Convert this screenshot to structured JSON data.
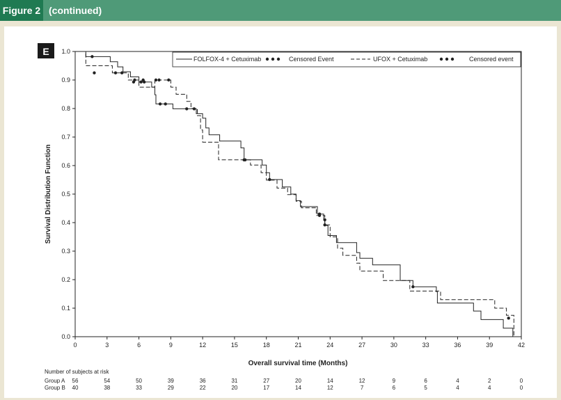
{
  "header": {
    "figure_label": "Figure 2",
    "subtitle": "(continued)"
  },
  "colors": {
    "header_bar": "#4f9a78",
    "label_box": "#1f7a52",
    "page_bg": "#ebe6d3"
  },
  "chart_data": {
    "type": "line",
    "panel_label": "E",
    "title": "",
    "xlabel": "Overall survival time (Months)",
    "ylabel": "Survival Distribution Function",
    "xlim": [
      0,
      42
    ],
    "ylim": [
      0,
      1.0
    ],
    "xticks": [
      0,
      3,
      6,
      9,
      12,
      15,
      18,
      21,
      24,
      27,
      30,
      33,
      36,
      39,
      42
    ],
    "yticks": [
      "0.0",
      "0.1",
      "0.2",
      "0.3",
      "0.4",
      "0.5",
      "0.6",
      "0.7",
      "0.8",
      "0.9",
      "1.0"
    ],
    "grid": false,
    "legend_position": "top-right",
    "legend": [
      {
        "label": "FOLFOX-4 + Cetuximab",
        "style": "solid",
        "censor_label": "Censored Event"
      },
      {
        "label": "UFOX + Cetuximab",
        "style": "dashed",
        "censor_label": "Censored event"
      }
    ],
    "series": [
      {
        "name": "FOLFOX-4 + Cetuximab",
        "style": "solid",
        "steps": [
          [
            0,
            1.0
          ],
          [
            1,
            0.982
          ],
          [
            3.3,
            0.964
          ],
          [
            4.0,
            0.946
          ],
          [
            4.5,
            0.929
          ],
          [
            5.2,
            0.911
          ],
          [
            6.0,
            0.893
          ],
          [
            7.2,
            0.875
          ],
          [
            7.5,
            0.848
          ],
          [
            7.6,
            0.816
          ],
          [
            9.2,
            0.799
          ],
          [
            11.4,
            0.782
          ],
          [
            12.0,
            0.766
          ],
          [
            12.3,
            0.732
          ],
          [
            12.6,
            0.708
          ],
          [
            13.6,
            0.686
          ],
          [
            15.6,
            0.662
          ],
          [
            15.9,
            0.62
          ],
          [
            17.6,
            0.602
          ],
          [
            18.0,
            0.575
          ],
          [
            18.3,
            0.551
          ],
          [
            19.5,
            0.525
          ],
          [
            20.3,
            0.5
          ],
          [
            20.8,
            0.477
          ],
          [
            21.2,
            0.456
          ],
          [
            22.8,
            0.43
          ],
          [
            23.4,
            0.41
          ],
          [
            23.5,
            0.39
          ],
          [
            23.8,
            0.355
          ],
          [
            24.6,
            0.33
          ],
          [
            26.5,
            0.295
          ],
          [
            26.8,
            0.275
          ],
          [
            28.0,
            0.252
          ],
          [
            30.6,
            0.197
          ],
          [
            31.8,
            0.175
          ],
          [
            34.0,
            0.158
          ],
          [
            34.1,
            0.118
          ],
          [
            37.5,
            0.09
          ],
          [
            38.2,
            0.06
          ],
          [
            40.3,
            0.03
          ],
          [
            41.2,
            0.0
          ]
        ],
        "end": 41.2,
        "censored": [
          [
            1.6,
            0.982
          ],
          [
            5.5,
            0.893
          ],
          [
            6.2,
            0.893
          ],
          [
            6.5,
            0.893
          ],
          [
            8.0,
            0.816
          ],
          [
            8.5,
            0.816
          ],
          [
            10.5,
            0.799
          ],
          [
            11.2,
            0.799
          ],
          [
            15.9,
            0.62
          ],
          [
            18.3,
            0.551
          ],
          [
            23.0,
            0.43
          ],
          [
            23.5,
            0.41
          ],
          [
            31.8,
            0.175
          ]
        ]
      },
      {
        "name": "UFOX + Cetuximab",
        "style": "dashed",
        "steps": [
          [
            0,
            1.0
          ],
          [
            1.0,
            0.95
          ],
          [
            3.5,
            0.925
          ],
          [
            5.0,
            0.9
          ],
          [
            6.0,
            0.875
          ],
          [
            7.5,
            0.9
          ],
          [
            9.0,
            0.875
          ],
          [
            9.5,
            0.85
          ],
          [
            10.5,
            0.825
          ],
          [
            10.9,
            0.8
          ],
          [
            11.5,
            0.775
          ],
          [
            11.8,
            0.725
          ],
          [
            12.0,
            0.682
          ],
          [
            13.5,
            0.62
          ],
          [
            16.0,
            0.62
          ],
          [
            16.5,
            0.602
          ],
          [
            17.5,
            0.575
          ],
          [
            18.0,
            0.549
          ],
          [
            19.0,
            0.521
          ],
          [
            20.0,
            0.498
          ],
          [
            20.8,
            0.475
          ],
          [
            21.3,
            0.452
          ],
          [
            22.7,
            0.425
          ],
          [
            23.5,
            0.392
          ],
          [
            24.0,
            0.35
          ],
          [
            24.7,
            0.31
          ],
          [
            25.2,
            0.285
          ],
          [
            26.5,
            0.258
          ],
          [
            26.8,
            0.23
          ],
          [
            29.0,
            0.197
          ],
          [
            31.5,
            0.16
          ],
          [
            34.4,
            0.13
          ],
          [
            39.5,
            0.1
          ],
          [
            40.6,
            0.075
          ],
          [
            41.3,
            0.0
          ]
        ],
        "end": 41.3,
        "censored": [
          [
            1.8,
            0.925
          ],
          [
            3.8,
            0.925
          ],
          [
            4.4,
            0.925
          ],
          [
            5.6,
            0.9
          ],
          [
            6.4,
            0.9
          ],
          [
            7.6,
            0.9
          ],
          [
            7.9,
            0.9
          ],
          [
            8.8,
            0.9
          ],
          [
            16.0,
            0.62
          ],
          [
            23.0,
            0.425
          ],
          [
            23.5,
            0.392
          ],
          [
            40.8,
            0.065
          ]
        ]
      }
    ],
    "at_risk": {
      "title": "Number of subjects at risk",
      "times": [
        0,
        3,
        6,
        9,
        12,
        15,
        18,
        21,
        24,
        27,
        30,
        33,
        36,
        39,
        42
      ],
      "groups": [
        {
          "name": "Group A",
          "values": [
            "56",
            "54",
            "50",
            "39",
            "36",
            "31",
            "27",
            "20",
            "14",
            "12",
            "9",
            "6",
            "4",
            "2",
            "0"
          ]
        },
        {
          "name": "Group B",
          "values": [
            "40",
            "38",
            "33",
            "29",
            "22",
            "20",
            "17",
            "14",
            "12",
            "7",
            "6",
            "5",
            "4",
            "4",
            "0"
          ]
        }
      ]
    }
  }
}
